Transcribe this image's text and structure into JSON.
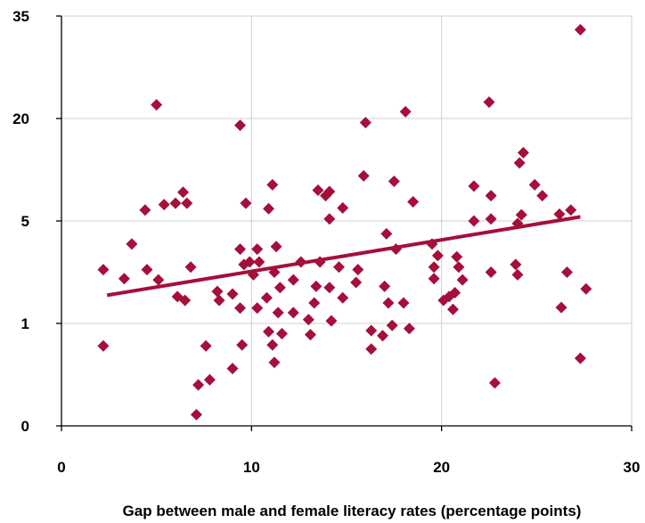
{
  "chart_data": {
    "type": "scatter",
    "title": "",
    "xlabel": "Gap between male and female literacy rates (percentage points)",
    "ylabel": "",
    "xlim": [
      0,
      30
    ],
    "ylim_ticks": [
      "0",
      "1",
      "5",
      "20",
      "35"
    ],
    "x_ticks": [
      "0",
      "10",
      "20",
      "30"
    ],
    "y_scale": "nonlinear (tick labels 0, 1, 5, 20, 35 at equal spacing)",
    "grid": true,
    "legend": "none",
    "marker": "diamond",
    "color": "#a50f3a",
    "trendline": {
      "type": "linear",
      "x": [
        2.4,
        27.3
      ],
      "y": [
        2.1,
        5.6
      ]
    },
    "points": [
      [
        2.2,
        3.1
      ],
      [
        2.2,
        0.78
      ],
      [
        3.3,
        2.75
      ],
      [
        3.7,
        4.1
      ],
      [
        4.4,
        6.6
      ],
      [
        4.5,
        3.1
      ],
      [
        5.0,
        22.0
      ],
      [
        5.1,
        2.7
      ],
      [
        5.4,
        7.4
      ],
      [
        6.0,
        7.6
      ],
      [
        6.1,
        2.05
      ],
      [
        6.4,
        9.2
      ],
      [
        6.5,
        1.9
      ],
      [
        6.6,
        7.6
      ],
      [
        6.8,
        3.2
      ],
      [
        7.1,
        0.11
      ],
      [
        7.2,
        0.4
      ],
      [
        7.6,
        0.78
      ],
      [
        7.8,
        0.45
      ],
      [
        8.2,
        2.25
      ],
      [
        8.3,
        1.9
      ],
      [
        9.0,
        2.15
      ],
      [
        9.0,
        0.56
      ],
      [
        9.4,
        3.9
      ],
      [
        9.4,
        19.0
      ],
      [
        9.4,
        1.6
      ],
      [
        9.5,
        0.79
      ],
      [
        9.6,
        3.3
      ],
      [
        9.7,
        7.6
      ],
      [
        9.9,
        3.4
      ],
      [
        10.1,
        2.9
      ],
      [
        10.3,
        1.6
      ],
      [
        10.3,
        3.9
      ],
      [
        10.4,
        3.4
      ],
      [
        10.8,
        2.0
      ],
      [
        10.9,
        6.8
      ],
      [
        10.9,
        0.92
      ],
      [
        11.1,
        10.3
      ],
      [
        11.1,
        0.79
      ],
      [
        11.2,
        0.62
      ],
      [
        11.2,
        3.0
      ],
      [
        11.3,
        4.0
      ],
      [
        11.4,
        1.42
      ],
      [
        11.5,
        2.4
      ],
      [
        11.6,
        0.9
      ],
      [
        12.2,
        1.42
      ],
      [
        12.2,
        2.7
      ],
      [
        12.6,
        3.4
      ],
      [
        13.0,
        1.15
      ],
      [
        13.1,
        0.89
      ],
      [
        13.3,
        1.8
      ],
      [
        13.4,
        2.45
      ],
      [
        13.5,
        9.5
      ],
      [
        13.6,
        3.4
      ],
      [
        13.9,
        8.7
      ],
      [
        14.1,
        2.4
      ],
      [
        14.1,
        9.3
      ],
      [
        14.1,
        5.3
      ],
      [
        14.2,
        1.1
      ],
      [
        14.6,
        3.2
      ],
      [
        14.8,
        6.9
      ],
      [
        14.8,
        2.0
      ],
      [
        15.5,
        2.6
      ],
      [
        15.6,
        3.1
      ],
      [
        15.9,
        11.6
      ],
      [
        16.0,
        19.4
      ],
      [
        16.3,
        0.93
      ],
      [
        16.3,
        0.75
      ],
      [
        16.9,
        0.88
      ],
      [
        17.0,
        2.45
      ],
      [
        17.1,
        4.5
      ],
      [
        17.2,
        1.8
      ],
      [
        17.4,
        0.98
      ],
      [
        17.5,
        10.8
      ],
      [
        17.6,
        3.9
      ],
      [
        18.0,
        1.8
      ],
      [
        18.1,
        21.0
      ],
      [
        18.3,
        0.95
      ],
      [
        18.5,
        7.8
      ],
      [
        19.5,
        4.1
      ],
      [
        19.6,
        3.2
      ],
      [
        19.6,
        2.75
      ],
      [
        19.8,
        3.65
      ],
      [
        20.1,
        1.9
      ],
      [
        20.4,
        2.05
      ],
      [
        20.6,
        1.55
      ],
      [
        20.7,
        2.2
      ],
      [
        20.8,
        3.6
      ],
      [
        20.9,
        3.2
      ],
      [
        21.1,
        2.7
      ],
      [
        21.7,
        10.1
      ],
      [
        21.7,
        5.0
      ],
      [
        22.5,
        22.4
      ],
      [
        22.6,
        3.0
      ],
      [
        22.6,
        5.3
      ],
      [
        22.6,
        8.7
      ],
      [
        22.8,
        0.42
      ],
      [
        23.9,
        3.3
      ],
      [
        24.0,
        2.9
      ],
      [
        24.0,
        4.9
      ],
      [
        24.1,
        13.5
      ],
      [
        24.2,
        5.9
      ],
      [
        24.3,
        15.0
      ],
      [
        24.9,
        10.3
      ],
      [
        25.3,
        8.7
      ],
      [
        26.2,
        6.0
      ],
      [
        26.3,
        1.62
      ],
      [
        26.6,
        3.0
      ],
      [
        26.8,
        6.6
      ],
      [
        27.3,
        33.0
      ],
      [
        27.3,
        0.66
      ],
      [
        27.6,
        2.35
      ]
    ]
  }
}
